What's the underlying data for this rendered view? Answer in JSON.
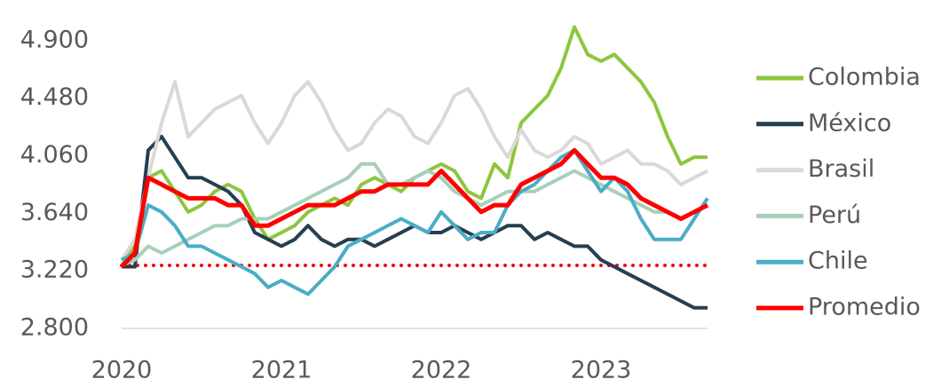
{
  "chart_data": {
    "type": "line",
    "categories": [
      "2020",
      null,
      null,
      null,
      null,
      null,
      null,
      null,
      null,
      null,
      null,
      null,
      "2021",
      null,
      null,
      null,
      null,
      null,
      null,
      null,
      null,
      null,
      null,
      null,
      "2022",
      null,
      null,
      null,
      null,
      null,
      null,
      null,
      null,
      null,
      null,
      null,
      "2023",
      null,
      null,
      null,
      null,
      null,
      null,
      null,
      null
    ],
    "ylim": [
      2800,
      5100
    ],
    "yticks": [
      {
        "value": 2800,
        "label": "2.800"
      },
      {
        "value": 3220,
        "label": "3.220"
      },
      {
        "value": 3640,
        "label": "3.640"
      },
      {
        "value": 4060,
        "label": "4.060"
      },
      {
        "value": 4480,
        "label": "4.480"
      },
      {
        "value": 4900,
        "label": "4.900"
      }
    ],
    "baseline": 3260,
    "baseline_color": "#ff0000",
    "legend": "right",
    "series": [
      {
        "name": "Colombia",
        "color": "#8dc63f",
        "values": [
          3260,
          3400,
          3900,
          3950,
          3800,
          3650,
          3700,
          3800,
          3850,
          3800,
          3600,
          3450,
          3500,
          3550,
          3650,
          3700,
          3750,
          3700,
          3850,
          3900,
          3850,
          3800,
          3900,
          3950,
          4000,
          3950,
          3800,
          3750,
          4000,
          3900,
          4300,
          4400,
          4500,
          4700,
          5000,
          4800,
          4750,
          4800,
          4700,
          4600,
          4450,
          4200,
          4000,
          4050,
          4050
        ]
      },
      {
        "name": "México",
        "color": "#253f52",
        "values": [
          3250,
          3250,
          4100,
          4200,
          4050,
          3900,
          3900,
          3850,
          3800,
          3700,
          3500,
          3450,
          3400,
          3450,
          3550,
          3450,
          3400,
          3450,
          3450,
          3400,
          3450,
          3500,
          3550,
          3500,
          3500,
          3550,
          3500,
          3450,
          3500,
          3550,
          3550,
          3450,
          3500,
          3450,
          3400,
          3400,
          3300,
          3250,
          3200,
          3150,
          3100,
          3050,
          3000,
          2950,
          2950
        ]
      },
      {
        "name": "Brasil",
        "color": "#d9d9d9",
        "values": [
          3300,
          3450,
          3900,
          4300,
          4600,
          4200,
          4300,
          4400,
          4450,
          4500,
          4300,
          4150,
          4300,
          4500,
          4600,
          4450,
          4250,
          4100,
          4150,
          4300,
          4400,
          4350,
          4200,
          4150,
          4300,
          4500,
          4550,
          4400,
          4200,
          4050,
          4250,
          4100,
          4050,
          4100,
          4200,
          4150,
          4000,
          4050,
          4100,
          4000,
          4000,
          3950,
          3850,
          3900,
          3950
        ]
      },
      {
        "name": "Perú",
        "color": "#a8cfb8",
        "values": [
          3260,
          3300,
          3400,
          3350,
          3400,
          3450,
          3500,
          3550,
          3550,
          3600,
          3600,
          3600,
          3650,
          3700,
          3750,
          3800,
          3850,
          3900,
          4000,
          4000,
          3850,
          3850,
          3900,
          3950,
          3900,
          3800,
          3750,
          3700,
          3750,
          3800,
          3800,
          3800,
          3850,
          3900,
          3950,
          3900,
          3850,
          3800,
          3750,
          3700,
          3650,
          3650,
          3600,
          3650,
          3700
        ]
      },
      {
        "name": "Chile",
        "color": "#4bacc6",
        "values": [
          3300,
          3350,
          3700,
          3650,
          3550,
          3400,
          3400,
          3350,
          3300,
          3250,
          3200,
          3100,
          3150,
          3100,
          3050,
          3150,
          3250,
          3400,
          3450,
          3500,
          3550,
          3600,
          3550,
          3500,
          3650,
          3550,
          3450,
          3500,
          3500,
          3700,
          3800,
          3850,
          3950,
          4050,
          4100,
          3950,
          3800,
          3900,
          3800,
          3600,
          3450,
          3450,
          3450,
          3600,
          3750
        ]
      },
      {
        "name": "Promedio",
        "color": "#ff0000",
        "values": [
          3250,
          3350,
          3900,
          3850,
          3800,
          3750,
          3750,
          3750,
          3700,
          3700,
          3550,
          3550,
          3600,
          3650,
          3700,
          3700,
          3700,
          3750,
          3800,
          3800,
          3850,
          3850,
          3850,
          3850,
          3950,
          3850,
          3750,
          3650,
          3700,
          3700,
          3850,
          3900,
          3950,
          4000,
          4100,
          4000,
          3900,
          3900,
          3850,
          3750,
          3700,
          3650,
          3600,
          3650,
          3700
        ]
      }
    ]
  }
}
